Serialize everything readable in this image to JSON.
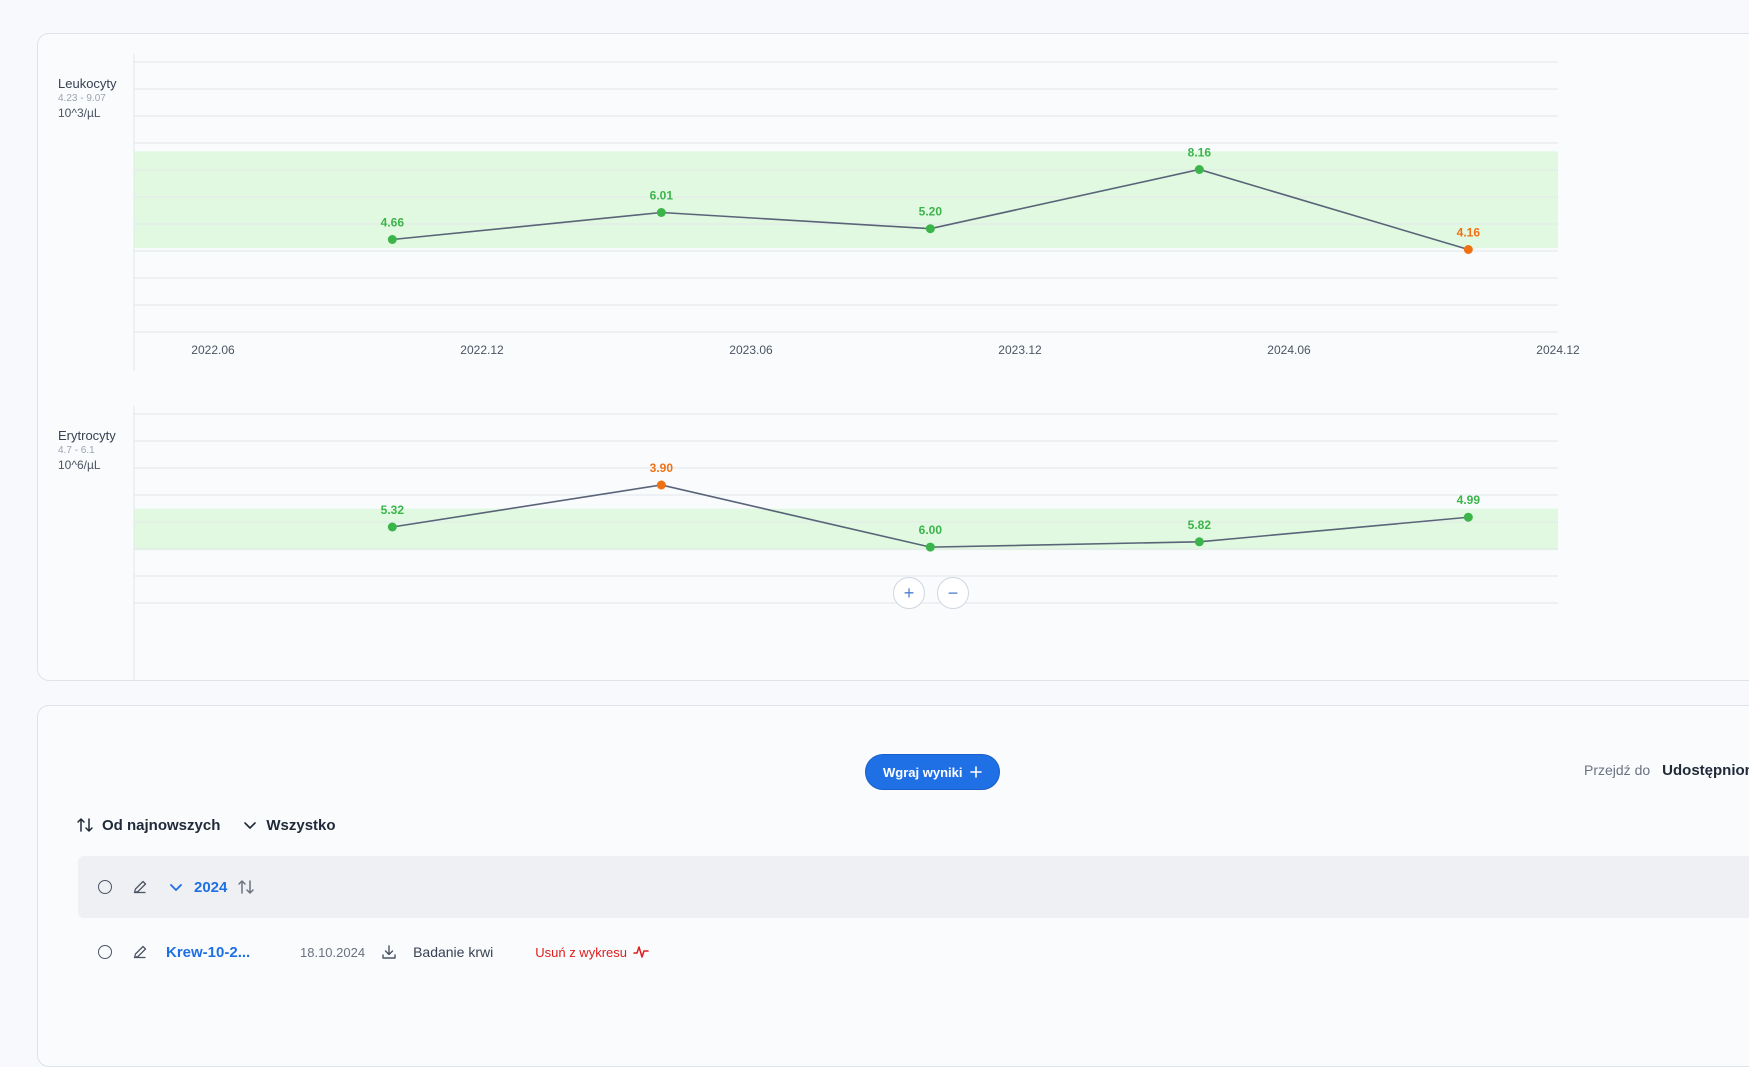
{
  "charts_panel": {
    "zoom_in_label": "+",
    "zoom_out_label": "−"
  },
  "chart_data": [
    {
      "type": "line",
      "title": "Leukocyty",
      "reference_range_label": "4.23 - 9.07",
      "unit": "10^3/µL",
      "reference_range": [
        4.23,
        9.07
      ],
      "x_ticks": [
        "2022.06",
        "2022.12",
        "2023.06",
        "2023.12",
        "2024.06",
        "2024.12"
      ],
      "x": [
        "2022.10",
        "2023.04",
        "2023.10",
        "2024.04",
        "2024.10"
      ],
      "values": [
        4.66,
        6.01,
        5.2,
        8.16,
        4.16
      ],
      "labels": [
        "4.66",
        "6.01",
        "5.20",
        "8.16",
        "4.16"
      ],
      "status": [
        "normal",
        "normal",
        "normal",
        "normal",
        "low"
      ],
      "grid": true
    },
    {
      "type": "line",
      "title": "Erytrocyty",
      "reference_range_label": "4.7 - 6.1",
      "unit": "10^6/µL",
      "reference_range": [
        4.7,
        6.1
      ],
      "x": [
        "2022.10",
        "2023.04",
        "2023.10",
        "2024.04",
        "2024.10"
      ],
      "values": [
        5.32,
        3.9,
        6.0,
        5.82,
        4.99
      ],
      "labels": [
        "5.32",
        "3.90",
        "6.00",
        "5.82",
        "4.99"
      ],
      "status": [
        "normal",
        "low",
        "normal",
        "normal",
        "normal"
      ],
      "grid": true
    }
  ],
  "colors": {
    "normal": "#3bb54a",
    "low": "#f07113",
    "line": "#5a6478",
    "range_band": "#e1f9e1",
    "accent": "#1f6fe5",
    "danger": "#e11d1d"
  },
  "results": {
    "upload_button_label": "Wgraj wyniki",
    "goto_label": "Przejdź do",
    "goto_link": "Udostępnion",
    "sort_label": "Od najnowszych",
    "filter_label": "Wszystko",
    "year_group": {
      "year": "2024"
    },
    "files": [
      {
        "name": "Krew-10-2...",
        "date": "18.10.2024",
        "type": "Badanie krwi",
        "remove_label": "Usuń z wykresu"
      }
    ]
  }
}
